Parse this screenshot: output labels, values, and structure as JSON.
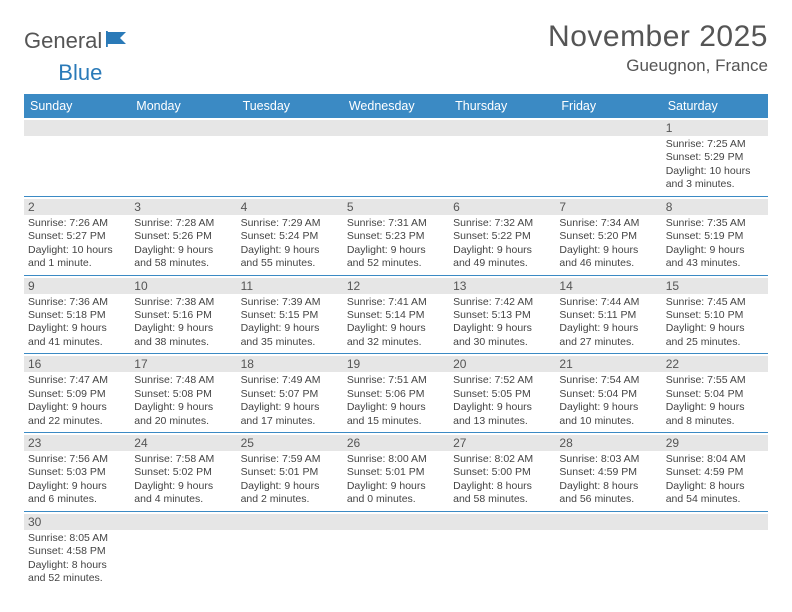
{
  "logo": {
    "general": "General",
    "blue": "Blue"
  },
  "title": "November 2025",
  "location": "Gueugnon, France",
  "dayHeaders": [
    "Sunday",
    "Monday",
    "Tuesday",
    "Wednesday",
    "Thursday",
    "Friday",
    "Saturday"
  ],
  "colors": {
    "headerBg": "#3b8ac4",
    "headerText": "#ffffff",
    "dayNumBg": "#e6e6e6",
    "rowBorder": "#3b8ac4",
    "text": "#444444",
    "logoBlue": "#2a7ab8"
  },
  "weeks": [
    [
      {
        "blank": true
      },
      {
        "blank": true
      },
      {
        "blank": true
      },
      {
        "blank": true
      },
      {
        "blank": true
      },
      {
        "blank": true
      },
      {
        "day": "1",
        "sunrise": "Sunrise: 7:25 AM",
        "sunset": "Sunset: 5:29 PM",
        "daylight1": "Daylight: 10 hours",
        "daylight2": "and 3 minutes."
      }
    ],
    [
      {
        "day": "2",
        "sunrise": "Sunrise: 7:26 AM",
        "sunset": "Sunset: 5:27 PM",
        "daylight1": "Daylight: 10 hours",
        "daylight2": "and 1 minute."
      },
      {
        "day": "3",
        "sunrise": "Sunrise: 7:28 AM",
        "sunset": "Sunset: 5:26 PM",
        "daylight1": "Daylight: 9 hours",
        "daylight2": "and 58 minutes."
      },
      {
        "day": "4",
        "sunrise": "Sunrise: 7:29 AM",
        "sunset": "Sunset: 5:24 PM",
        "daylight1": "Daylight: 9 hours",
        "daylight2": "and 55 minutes."
      },
      {
        "day": "5",
        "sunrise": "Sunrise: 7:31 AM",
        "sunset": "Sunset: 5:23 PM",
        "daylight1": "Daylight: 9 hours",
        "daylight2": "and 52 minutes."
      },
      {
        "day": "6",
        "sunrise": "Sunrise: 7:32 AM",
        "sunset": "Sunset: 5:22 PM",
        "daylight1": "Daylight: 9 hours",
        "daylight2": "and 49 minutes."
      },
      {
        "day": "7",
        "sunrise": "Sunrise: 7:34 AM",
        "sunset": "Sunset: 5:20 PM",
        "daylight1": "Daylight: 9 hours",
        "daylight2": "and 46 minutes."
      },
      {
        "day": "8",
        "sunrise": "Sunrise: 7:35 AM",
        "sunset": "Sunset: 5:19 PM",
        "daylight1": "Daylight: 9 hours",
        "daylight2": "and 43 minutes."
      }
    ],
    [
      {
        "day": "9",
        "sunrise": "Sunrise: 7:36 AM",
        "sunset": "Sunset: 5:18 PM",
        "daylight1": "Daylight: 9 hours",
        "daylight2": "and 41 minutes."
      },
      {
        "day": "10",
        "sunrise": "Sunrise: 7:38 AM",
        "sunset": "Sunset: 5:16 PM",
        "daylight1": "Daylight: 9 hours",
        "daylight2": "and 38 minutes."
      },
      {
        "day": "11",
        "sunrise": "Sunrise: 7:39 AM",
        "sunset": "Sunset: 5:15 PM",
        "daylight1": "Daylight: 9 hours",
        "daylight2": "and 35 minutes."
      },
      {
        "day": "12",
        "sunrise": "Sunrise: 7:41 AM",
        "sunset": "Sunset: 5:14 PM",
        "daylight1": "Daylight: 9 hours",
        "daylight2": "and 32 minutes."
      },
      {
        "day": "13",
        "sunrise": "Sunrise: 7:42 AM",
        "sunset": "Sunset: 5:13 PM",
        "daylight1": "Daylight: 9 hours",
        "daylight2": "and 30 minutes."
      },
      {
        "day": "14",
        "sunrise": "Sunrise: 7:44 AM",
        "sunset": "Sunset: 5:11 PM",
        "daylight1": "Daylight: 9 hours",
        "daylight2": "and 27 minutes."
      },
      {
        "day": "15",
        "sunrise": "Sunrise: 7:45 AM",
        "sunset": "Sunset: 5:10 PM",
        "daylight1": "Daylight: 9 hours",
        "daylight2": "and 25 minutes."
      }
    ],
    [
      {
        "day": "16",
        "sunrise": "Sunrise: 7:47 AM",
        "sunset": "Sunset: 5:09 PM",
        "daylight1": "Daylight: 9 hours",
        "daylight2": "and 22 minutes."
      },
      {
        "day": "17",
        "sunrise": "Sunrise: 7:48 AM",
        "sunset": "Sunset: 5:08 PM",
        "daylight1": "Daylight: 9 hours",
        "daylight2": "and 20 minutes."
      },
      {
        "day": "18",
        "sunrise": "Sunrise: 7:49 AM",
        "sunset": "Sunset: 5:07 PM",
        "daylight1": "Daylight: 9 hours",
        "daylight2": "and 17 minutes."
      },
      {
        "day": "19",
        "sunrise": "Sunrise: 7:51 AM",
        "sunset": "Sunset: 5:06 PM",
        "daylight1": "Daylight: 9 hours",
        "daylight2": "and 15 minutes."
      },
      {
        "day": "20",
        "sunrise": "Sunrise: 7:52 AM",
        "sunset": "Sunset: 5:05 PM",
        "daylight1": "Daylight: 9 hours",
        "daylight2": "and 13 minutes."
      },
      {
        "day": "21",
        "sunrise": "Sunrise: 7:54 AM",
        "sunset": "Sunset: 5:04 PM",
        "daylight1": "Daylight: 9 hours",
        "daylight2": "and 10 minutes."
      },
      {
        "day": "22",
        "sunrise": "Sunrise: 7:55 AM",
        "sunset": "Sunset: 5:04 PM",
        "daylight1": "Daylight: 9 hours",
        "daylight2": "and 8 minutes."
      }
    ],
    [
      {
        "day": "23",
        "sunrise": "Sunrise: 7:56 AM",
        "sunset": "Sunset: 5:03 PM",
        "daylight1": "Daylight: 9 hours",
        "daylight2": "and 6 minutes."
      },
      {
        "day": "24",
        "sunrise": "Sunrise: 7:58 AM",
        "sunset": "Sunset: 5:02 PM",
        "daylight1": "Daylight: 9 hours",
        "daylight2": "and 4 minutes."
      },
      {
        "day": "25",
        "sunrise": "Sunrise: 7:59 AM",
        "sunset": "Sunset: 5:01 PM",
        "daylight1": "Daylight: 9 hours",
        "daylight2": "and 2 minutes."
      },
      {
        "day": "26",
        "sunrise": "Sunrise: 8:00 AM",
        "sunset": "Sunset: 5:01 PM",
        "daylight1": "Daylight: 9 hours",
        "daylight2": "and 0 minutes."
      },
      {
        "day": "27",
        "sunrise": "Sunrise: 8:02 AM",
        "sunset": "Sunset: 5:00 PM",
        "daylight1": "Daylight: 8 hours",
        "daylight2": "and 58 minutes."
      },
      {
        "day": "28",
        "sunrise": "Sunrise: 8:03 AM",
        "sunset": "Sunset: 4:59 PM",
        "daylight1": "Daylight: 8 hours",
        "daylight2": "and 56 minutes."
      },
      {
        "day": "29",
        "sunrise": "Sunrise: 8:04 AM",
        "sunset": "Sunset: 4:59 PM",
        "daylight1": "Daylight: 8 hours",
        "daylight2": "and 54 minutes."
      }
    ],
    [
      {
        "day": "30",
        "sunrise": "Sunrise: 8:05 AM",
        "sunset": "Sunset: 4:58 PM",
        "daylight1": "Daylight: 8 hours",
        "daylight2": "and 52 minutes."
      },
      {
        "blank": true
      },
      {
        "blank": true
      },
      {
        "blank": true
      },
      {
        "blank": true
      },
      {
        "blank": true
      },
      {
        "blank": true
      }
    ]
  ]
}
